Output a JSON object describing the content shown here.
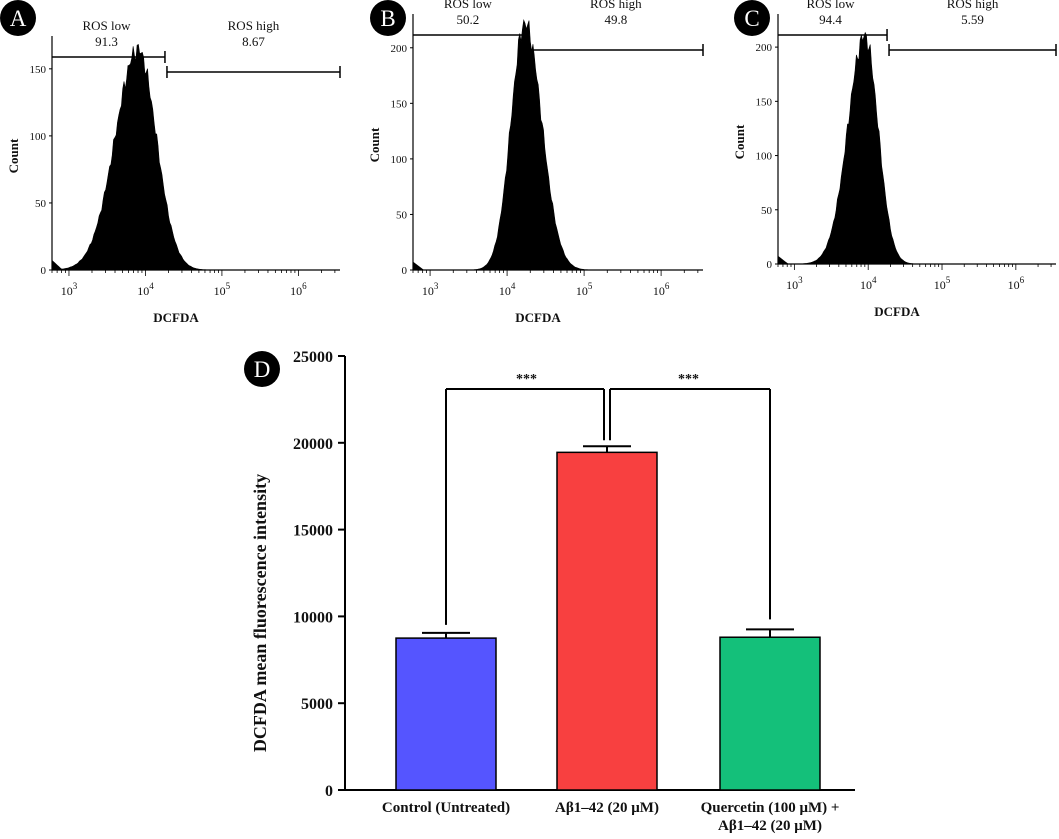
{
  "chart_data": [
    {
      "type": "histogram",
      "panel_label": "A",
      "xlabel": "DCFDA",
      "ylabel": "Count",
      "x_scale": "log",
      "xlim": [
        600,
        3500000
      ],
      "ylim": [
        0,
        170
      ],
      "yticks": [
        0,
        50,
        100,
        150
      ],
      "xticks": [
        {
          "base": "10",
          "exp": "3",
          "value": 1000
        },
        {
          "base": "10",
          "exp": "4",
          "value": 10000
        },
        {
          "base": "10",
          "exp": "5",
          "value": 100000
        },
        {
          "base": "10",
          "exp": "6",
          "value": 1000000
        }
      ],
      "peak_value": 8000,
      "peak_count": 164,
      "spread_left": 0.3,
      "spread_right": 0.24,
      "gates": [
        {
          "name": "ROS low",
          "percent": "91.3",
          "from": 600,
          "to": 18000
        },
        {
          "name": "ROS high",
          "percent": "8.67",
          "from": 18000,
          "to": 3500000
        }
      ]
    },
    {
      "type": "histogram",
      "panel_label": "B",
      "xlabel": "DCFDA",
      "ylabel": "Count",
      "x_scale": "log",
      "xlim": [
        600,
        3500000
      ],
      "ylim": [
        0,
        225
      ],
      "yticks": [
        0,
        50,
        100,
        150,
        200
      ],
      "xticks": [
        {
          "base": "10",
          "exp": "3",
          "value": 1000
        },
        {
          "base": "10",
          "exp": "4",
          "value": 10000
        },
        {
          "base": "10",
          "exp": "5",
          "value": 100000
        },
        {
          "base": "10",
          "exp": "6",
          "value": 1000000
        }
      ],
      "peak_value": 17000,
      "peak_count": 222,
      "spread_left": 0.18,
      "spread_right": 0.22,
      "gates": [
        {
          "name": "ROS low",
          "percent": "50.2",
          "from": 600,
          "to": 18000
        },
        {
          "name": "ROS high",
          "percent": "49.8",
          "from": 18000,
          "to": 3500000
        }
      ]
    },
    {
      "type": "histogram",
      "panel_label": "C",
      "xlabel": "DCFDA",
      "ylabel": "Count",
      "x_scale": "log",
      "xlim": [
        600,
        3500000
      ],
      "ylim": [
        0,
        225
      ],
      "yticks": [
        0,
        50,
        100,
        150,
        200
      ],
      "xticks": [
        {
          "base": "10",
          "exp": "3",
          "value": 1000
        },
        {
          "base": "10",
          "exp": "4",
          "value": 10000
        },
        {
          "base": "10",
          "exp": "5",
          "value": 100000
        },
        {
          "base": "10",
          "exp": "6",
          "value": 1000000
        }
      ],
      "peak_value": 9000,
      "peak_count": 210,
      "spread_left": 0.23,
      "spread_right": 0.18,
      "gates": [
        {
          "name": "ROS low",
          "percent": "94.4",
          "from": 600,
          "to": 18000
        },
        {
          "name": "ROS high",
          "percent": "5.59",
          "from": 18000,
          "to": 3500000
        }
      ]
    },
    {
      "type": "bar",
      "panel_label": "D",
      "ylabel": "DCFDA mean fluorescence intensity",
      "xlabel": "",
      "ylim": [
        0,
        25000
      ],
      "yticks": [
        0,
        5000,
        10000,
        15000,
        20000,
        25000
      ],
      "categories": [
        [
          "Control (Untreated)"
        ],
        [
          "Aβ1–42 (20 μM)"
        ],
        [
          "Quercetin (100 μM) +",
          "Aβ1–42 (20 μM)"
        ]
      ],
      "values": [
        8750,
        19450,
        8800
      ],
      "errors": [
        300,
        350,
        450
      ],
      "colors": [
        "#5555ff",
        "#f84040",
        "#14c07a"
      ],
      "significance": [
        {
          "from": 0,
          "to": 1,
          "label": "***",
          "level": 23100
        },
        {
          "from": 2,
          "to": 1,
          "label": "***",
          "level": 23100
        }
      ]
    }
  ]
}
